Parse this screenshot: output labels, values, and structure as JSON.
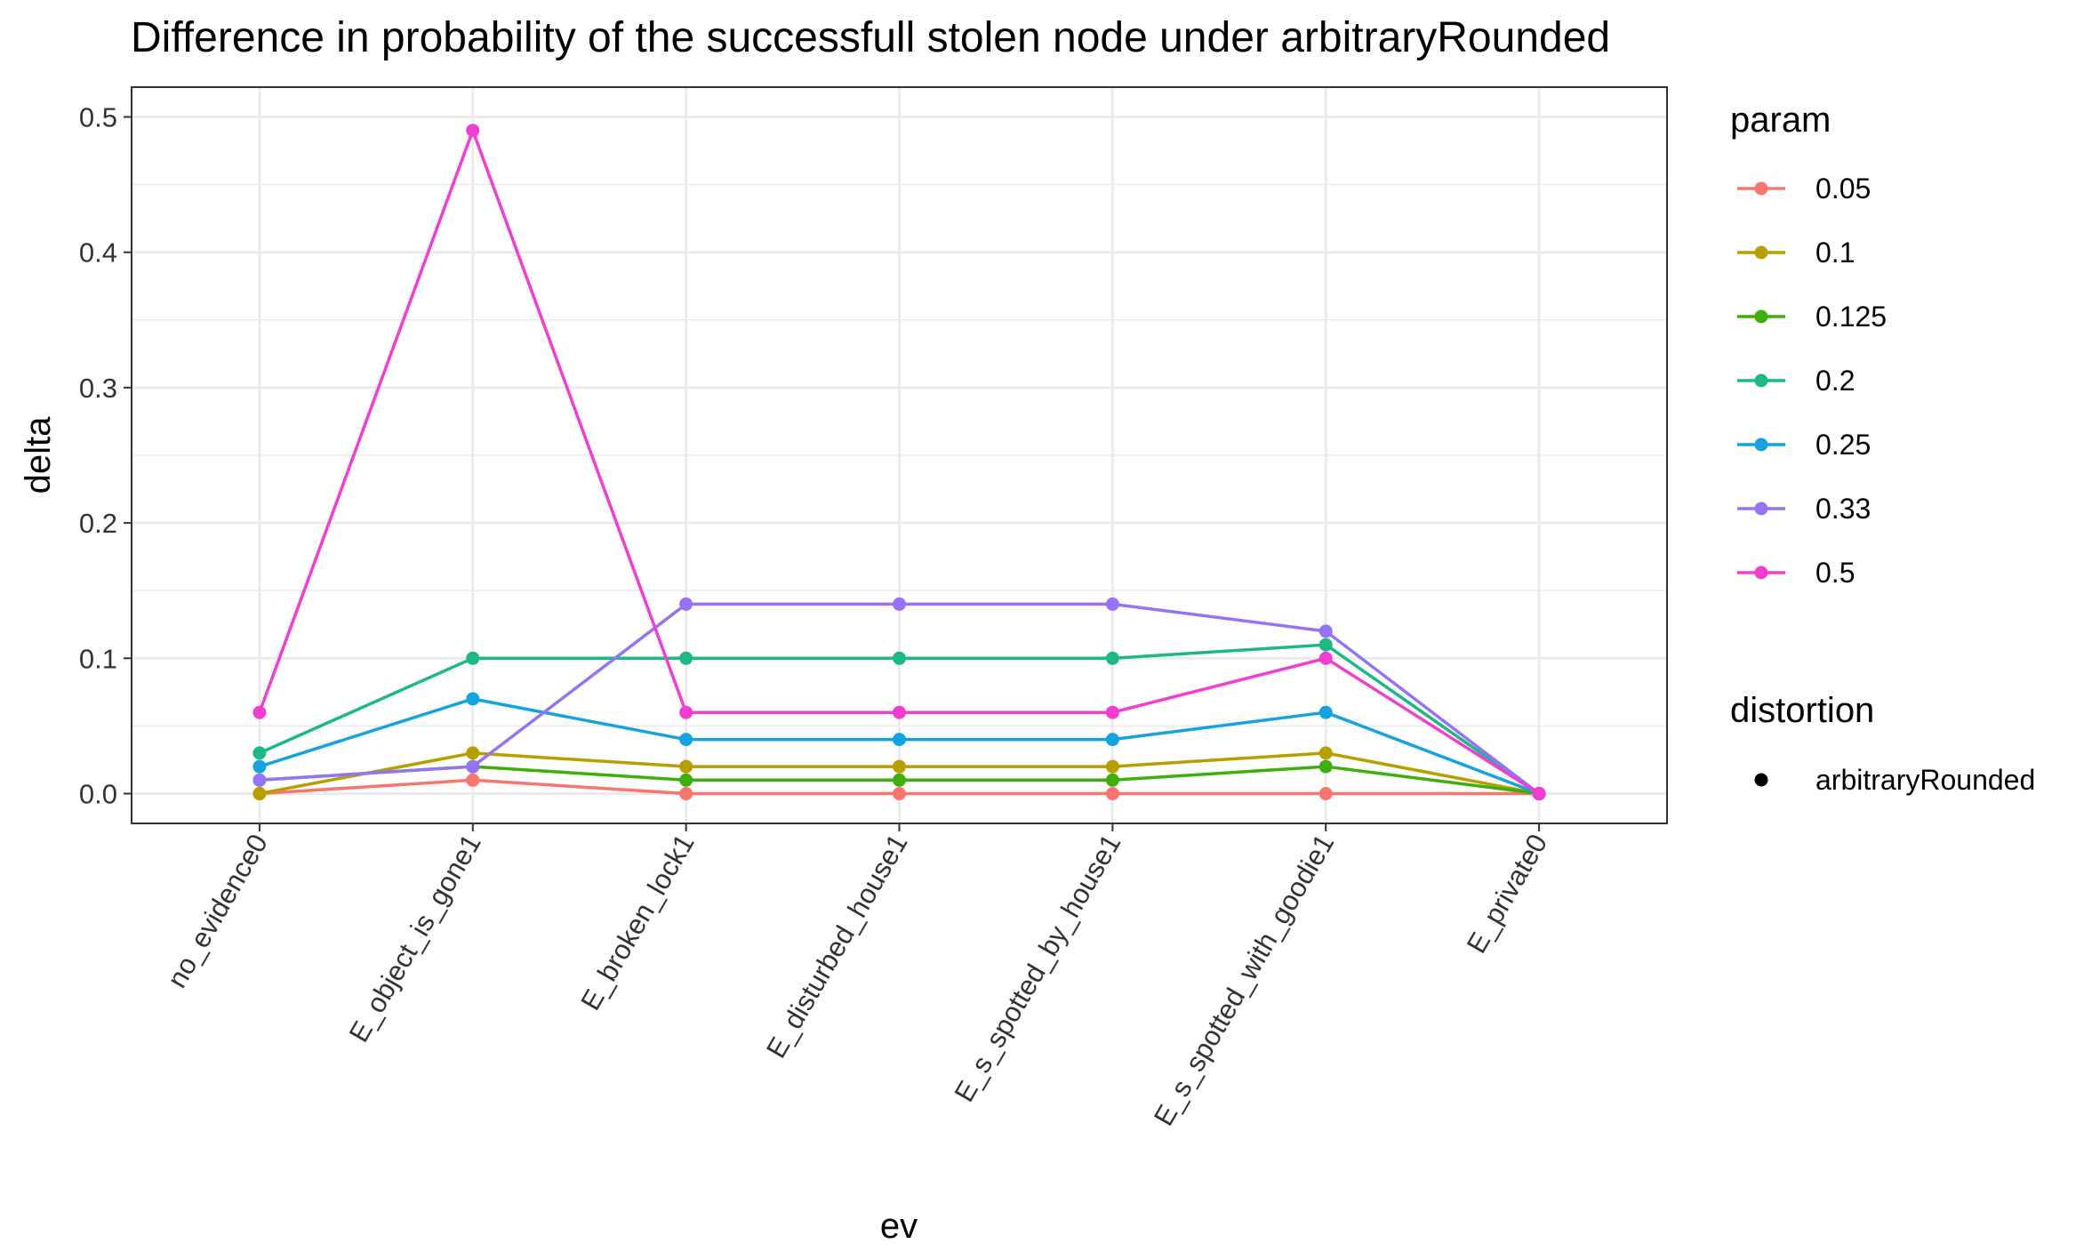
{
  "chart_data": {
    "type": "line",
    "title": "Difference in probability of the successfull stolen node under arbitraryRounded",
    "xlabel": "ev",
    "ylabel": "delta",
    "categories": [
      "no_evidence0",
      "E_object_is_gone1",
      "E_broken_lock1",
      "E_disturbed_house1",
      "E_s_spotted_by_house1",
      "E_s_spotted_with_goodie1",
      "E_private0"
    ],
    "ylim": [
      -0.022,
      0.522
    ],
    "yticks": [
      0.0,
      0.1,
      0.2,
      0.3,
      0.4,
      0.5
    ],
    "ytick_labels": [
      "0.0",
      "0.1",
      "0.2",
      "0.3",
      "0.4",
      "0.5"
    ],
    "grid": true,
    "legend_position": "right",
    "series": [
      {
        "name": "0.05",
        "color": "#F8766D",
        "values": [
          0.0,
          0.01,
          0.0,
          0.0,
          0.0,
          0.0,
          0.0
        ]
      },
      {
        "name": "0.1",
        "color": "#B79F00",
        "values": [
          0.0,
          0.03,
          0.02,
          0.02,
          0.02,
          0.03,
          0.0
        ]
      },
      {
        "name": "0.125",
        "color": "#3DAE0B",
        "values": [
          0.01,
          0.02,
          0.01,
          0.01,
          0.01,
          0.02,
          0.0
        ]
      },
      {
        "name": "0.2",
        "color": "#1DB887",
        "values": [
          0.03,
          0.1,
          0.1,
          0.1,
          0.1,
          0.11,
          0.0
        ]
      },
      {
        "name": "0.25",
        "color": "#14A3DE",
        "values": [
          0.02,
          0.07,
          0.04,
          0.04,
          0.04,
          0.06,
          0.0
        ]
      },
      {
        "name": "0.33",
        "color": "#9673F5",
        "values": [
          0.01,
          0.02,
          0.14,
          0.14,
          0.14,
          0.12,
          0.0
        ]
      },
      {
        "name": "0.5",
        "color": "#F03FD0",
        "values": [
          0.06,
          0.49,
          0.06,
          0.06,
          0.06,
          0.1,
          0.0
        ]
      }
    ],
    "legend": {
      "param_title": "param",
      "distortion_title": "distortion",
      "distortion_items": [
        {
          "label": "arbitraryRounded",
          "color": "#000000"
        }
      ]
    }
  }
}
